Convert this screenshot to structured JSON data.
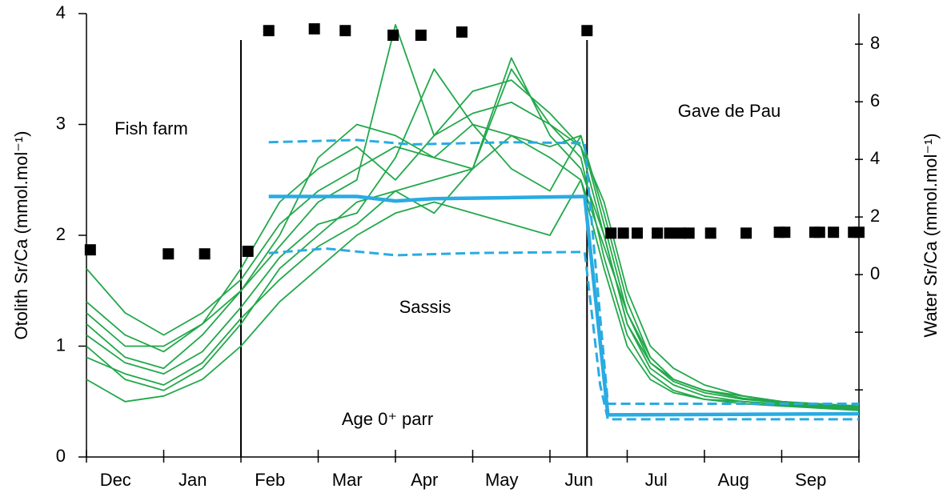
{
  "chart_data": {
    "type": "line",
    "y_label": "Otolith Sr/Ca (mmol.mol⁻¹)",
    "y2_label": "Water Sr/Ca (mmol.mol⁻¹)",
    "categories": [
      "Dec",
      "Jan",
      "Feb",
      "Mar",
      "Apr",
      "May",
      "Jun",
      "Jul",
      "Aug",
      "Sep"
    ],
    "xlim": [
      0,
      10
    ],
    "xticks": [
      0,
      1,
      2,
      3,
      4,
      5,
      6,
      7,
      8,
      9,
      10
    ],
    "ylim": [
      0,
      4
    ],
    "yticks": [
      0,
      1,
      2,
      3,
      4
    ],
    "y2lim": [
      -6.33,
      9.06
    ],
    "y2ticks": [
      {
        "value": -4,
        "label": null
      },
      {
        "value": -2,
        "label": null
      },
      0,
      2,
      4,
      6,
      8
    ],
    "grid": false,
    "vlines": [
      2,
      6.48
    ],
    "annotations": [
      "Fish farm",
      "Gave de Pau",
      "Sassis",
      "Age 0⁺ parr"
    ],
    "series": [
      {
        "style": "solid-thin",
        "color": "#22a84a",
        "x": [
          0,
          0.5,
          1,
          1.5,
          2,
          2.5,
          3,
          3.5,
          4,
          4.5,
          5,
          5.5,
          6,
          6.4,
          6.7,
          7,
          7.3,
          7.6,
          8,
          8.5,
          9,
          9.5,
          10
        ],
        "values": [
          1.7,
          1.3,
          1.1,
          1.3,
          1.6,
          2.1,
          2.4,
          2.6,
          2.8,
          2.7,
          3.0,
          2.9,
          2.8,
          2.9,
          2.2,
          1.4,
          0.9,
          0.7,
          0.6,
          0.55,
          0.5,
          0.47,
          0.45
        ]
      },
      {
        "style": "solid-thin",
        "color": "#22a84a",
        "x": [
          0,
          0.5,
          1,
          1.5,
          2,
          2.5,
          3,
          3.5,
          4,
          4.5,
          5,
          5.5,
          6,
          6.4,
          6.7,
          7,
          7.3,
          7.6,
          8,
          8.5,
          9,
          9.5,
          10
        ],
        "values": [
          1.2,
          0.9,
          0.8,
          1.1,
          1.5,
          1.9,
          2.3,
          2.5,
          3.9,
          2.9,
          3.1,
          3.2,
          3.0,
          2.8,
          2.0,
          1.2,
          0.8,
          0.65,
          0.55,
          0.5,
          0.48,
          0.45,
          0.44
        ]
      },
      {
        "style": "solid-thin",
        "color": "#22a84a",
        "x": [
          0,
          0.5,
          1,
          1.5,
          2,
          2.5,
          3,
          3.5,
          4,
          4.5,
          5,
          5.5,
          6,
          6.4,
          6.7,
          7,
          7.3,
          7.6,
          8,
          8.5,
          9,
          9.5,
          10
        ],
        "values": [
          1.0,
          0.7,
          0.6,
          0.8,
          1.2,
          1.7,
          2.0,
          2.3,
          2.4,
          2.5,
          2.6,
          3.5,
          3.0,
          2.7,
          1.8,
          1.1,
          0.75,
          0.6,
          0.52,
          0.5,
          0.47,
          0.45,
          0.43
        ]
      },
      {
        "style": "solid-thin",
        "color": "#22a84a",
        "x": [
          0,
          0.5,
          1,
          1.5,
          2,
          2.5,
          3,
          3.5,
          4,
          4.5,
          5,
          5.5,
          6,
          6.4,
          6.7,
          7,
          7.3,
          7.6,
          8,
          8.5,
          9,
          9.5,
          10
        ],
        "values": [
          0.7,
          0.5,
          0.55,
          0.7,
          1.0,
          1.4,
          1.7,
          2.0,
          2.2,
          2.3,
          2.2,
          2.1,
          2.0,
          2.5,
          1.9,
          1.3,
          0.9,
          0.7,
          0.6,
          0.55,
          0.5,
          0.47,
          0.45
        ]
      },
      {
        "style": "solid-thin",
        "color": "#22a84a",
        "x": [
          0,
          0.5,
          1,
          1.5,
          2,
          2.5,
          3,
          3.5,
          4,
          4.5,
          5,
          5.5,
          6,
          6.4,
          6.7,
          7,
          7.3,
          7.6,
          8,
          8.5,
          9,
          9.5,
          10
        ],
        "values": [
          1.4,
          1.1,
          0.95,
          1.2,
          1.7,
          2.3,
          2.6,
          2.8,
          2.5,
          2.9,
          3.3,
          3.4,
          3.1,
          2.8,
          2.3,
          1.5,
          1.0,
          0.8,
          0.65,
          0.55,
          0.5,
          0.48,
          0.46
        ]
      },
      {
        "style": "solid-thin",
        "color": "#22a84a",
        "x": [
          0,
          0.5,
          1,
          1.5,
          2,
          2.5,
          3,
          3.5,
          4,
          4.5,
          5,
          5.5,
          6,
          6.4,
          6.7,
          7,
          7.3,
          7.6,
          8,
          8.5,
          9,
          9.5,
          10
        ],
        "values": [
          1.1,
          0.85,
          0.75,
          0.95,
          1.35,
          1.8,
          2.1,
          2.2,
          2.7,
          3.5,
          3.0,
          2.6,
          2.4,
          2.9,
          2.1,
          1.3,
          0.85,
          0.68,
          0.58,
          0.52,
          0.49,
          0.46,
          0.44
        ]
      },
      {
        "style": "solid-thin",
        "color": "#22a84a",
        "x": [
          0,
          0.5,
          1,
          1.5,
          2,
          2.5,
          3,
          3.5,
          4,
          4.5,
          5,
          5.5,
          6,
          6.4,
          6.7,
          7,
          7.3,
          7.6,
          8,
          8.5,
          9,
          9.5,
          10
        ],
        "values": [
          1.3,
          1.0,
          1.0,
          1.2,
          1.5,
          2.0,
          2.7,
          3.0,
          2.9,
          2.7,
          2.6,
          3.6,
          2.9,
          2.6,
          2.0,
          1.2,
          0.85,
          0.7,
          0.6,
          0.53,
          0.5,
          0.47,
          0.45
        ]
      },
      {
        "style": "solid-thin",
        "color": "#22a84a",
        "x": [
          0,
          0.5,
          1,
          1.5,
          2,
          2.5,
          3,
          3.5,
          4,
          4.5,
          5,
          5.5,
          6,
          6.4,
          6.7,
          7,
          7.3,
          7.6,
          8,
          8.5,
          9,
          9.5,
          10
        ],
        "values": [
          0.9,
          0.75,
          0.65,
          0.85,
          1.25,
          1.6,
          1.9,
          2.1,
          2.4,
          2.2,
          2.6,
          2.9,
          2.7,
          2.5,
          1.7,
          1.0,
          0.7,
          0.58,
          0.52,
          0.48,
          0.46,
          0.44,
          0.42
        ]
      },
      {
        "style": "dashed",
        "color": "#29abe2",
        "x": [
          2.36,
          3.5,
          4.2,
          5.5,
          6.45,
          6.75,
          10
        ],
        "values": [
          2.84,
          2.86,
          2.82,
          2.84,
          2.83,
          0.48,
          0.48
        ]
      },
      {
        "style": "dashed",
        "color": "#29abe2",
        "x": [
          2.36,
          3.1,
          4.0,
          5.0,
          6.45,
          6.65,
          6.75,
          10
        ],
        "values": [
          1.84,
          1.88,
          1.82,
          1.84,
          1.85,
          0.65,
          0.34,
          0.34
        ]
      },
      {
        "style": "solid-thick",
        "color": "#29abe2",
        "x": [
          2.36,
          3.5,
          4.0,
          4.5,
          5.5,
          6.45,
          6.75,
          10
        ],
        "values": [
          2.35,
          2.35,
          2.31,
          2.33,
          2.34,
          2.35,
          0.38,
          0.39
        ]
      },
      {
        "style": "marker",
        "color": "#000000",
        "axis": "y2",
        "x": [
          0.05,
          1.06,
          1.53,
          2.09,
          2.36,
          2.95,
          3.35,
          3.97,
          4.33,
          4.86,
          6.48,
          6.79,
          6.95,
          7.13,
          7.39,
          7.55,
          7.69,
          7.8,
          8.08,
          8.54,
          8.97,
          9.04,
          9.43,
          9.49,
          9.67,
          9.93,
          10.0
        ],
        "values": [
          0.86,
          0.72,
          0.72,
          0.81,
          8.47,
          8.53,
          8.47,
          8.31,
          8.31,
          8.42,
          8.47,
          1.44,
          1.44,
          1.44,
          1.44,
          1.44,
          1.44,
          1.44,
          1.44,
          1.44,
          1.47,
          1.47,
          1.47,
          1.47,
          1.47,
          1.47,
          1.47
        ]
      }
    ]
  }
}
